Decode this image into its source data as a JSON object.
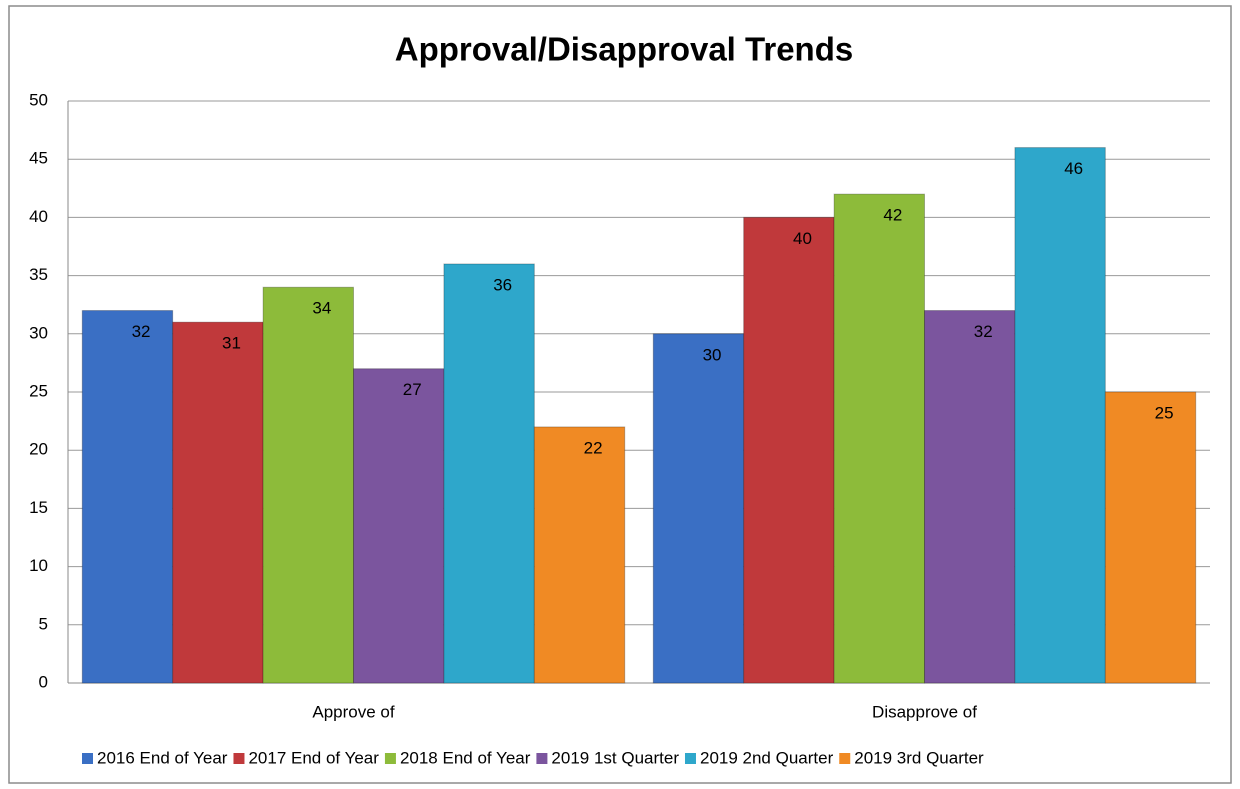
{
  "chart_data": {
    "type": "bar",
    "title": "Approval/Disapproval Trends",
    "categories": [
      "Approve of",
      "Disapprove of"
    ],
    "series": [
      {
        "name": "2016 End of Year",
        "color": "#3a6fc4",
        "values": [
          32,
          30
        ]
      },
      {
        "name": "2017 End of Year",
        "color": "#c0393b",
        "values": [
          31,
          40
        ]
      },
      {
        "name": "2018 End of Year",
        "color": "#8dbb3a",
        "values": [
          34,
          42
        ]
      },
      {
        "name": "2019 1st Quarter",
        "color": "#7b559e",
        "values": [
          27,
          32
        ]
      },
      {
        "name": "2019 2nd Quarter",
        "color": "#2ea7cb",
        "values": [
          36,
          46
        ]
      },
      {
        "name": "2019 3rd Quarter",
        "color": "#f08a24",
        "values": [
          22,
          25
        ]
      }
    ],
    "ylim": [
      0,
      50
    ],
    "yticks": [
      0,
      5,
      10,
      15,
      20,
      25,
      30,
      35,
      40,
      45,
      50
    ],
    "grid": true,
    "legend": "bottom"
  }
}
